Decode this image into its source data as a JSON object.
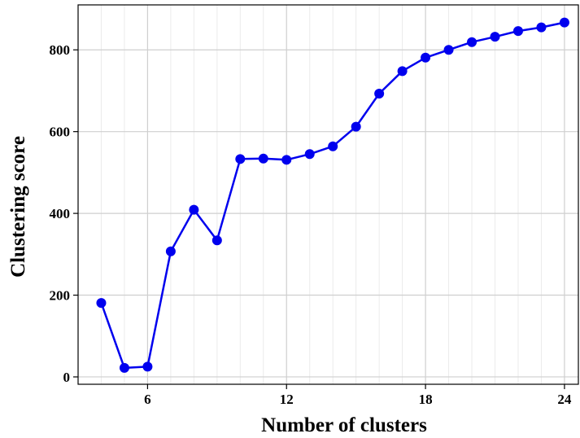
{
  "chart_data": {
    "type": "line",
    "title": "",
    "xlabel": "Number of clusters",
    "ylabel": "Clustering score",
    "xlim": [
      3,
      24.6
    ],
    "ylim": [
      -18,
      910
    ],
    "xticks": [
      6,
      12,
      18,
      24
    ],
    "yticks": [
      0,
      200,
      400,
      600,
      800
    ],
    "xtick_labels": [
      "6",
      "12",
      "18",
      "24"
    ],
    "ytick_labels": [
      "0",
      "200",
      "400",
      "600",
      "800"
    ],
    "grid": true,
    "minor_grid": true,
    "series": [
      {
        "color": "#0000ee",
        "marker": "circle",
        "x": [
          4,
          5,
          6,
          7,
          8,
          9,
          10,
          11,
          12,
          13,
          14,
          15,
          16,
          17,
          18,
          19,
          20,
          21,
          22,
          23,
          24
        ],
        "y": [
          181,
          22,
          25,
          307,
          409,
          334,
          533,
          534,
          531,
          545,
          564,
          612,
          693,
          748,
          781,
          800,
          819,
          832,
          846,
          855,
          867
        ]
      }
    ]
  }
}
